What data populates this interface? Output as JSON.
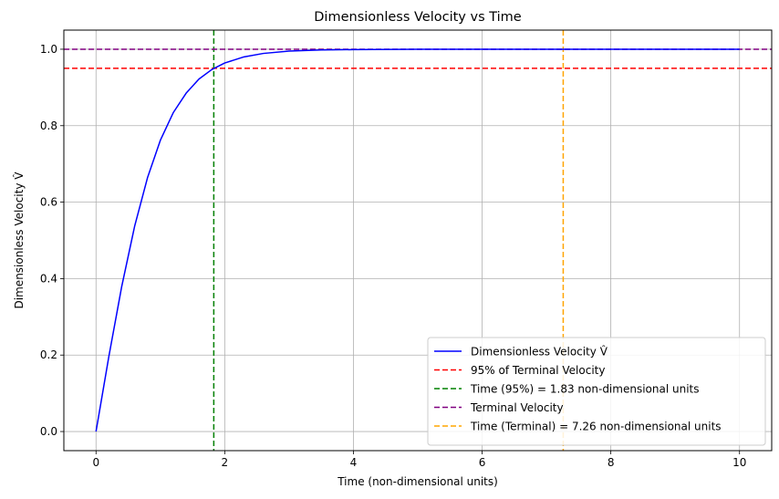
{
  "chart_data": {
    "type": "line",
    "title": "Dimensionless Velocity vs Time",
    "xlabel": "Time (non-dimensional units)",
    "ylabel": "Dimensionless Velocity V̂",
    "xlim": [
      -0.5,
      10.5
    ],
    "ylim": [
      -0.05,
      1.05
    ],
    "xticks": [
      0,
      2,
      4,
      6,
      8,
      10
    ],
    "yticks": [
      0.0,
      0.2,
      0.4,
      0.6,
      0.8,
      1.0
    ],
    "xtick_labels": [
      "0",
      "2",
      "4",
      "6",
      "8",
      "10"
    ],
    "ytick_labels": [
      "0.0",
      "0.2",
      "0.4",
      "0.6",
      "0.8",
      "1.0"
    ],
    "grid": true,
    "legend_position": "lower-right",
    "series": [
      {
        "name": "Dimensionless Velocity V̂",
        "style": "solid",
        "color": "#0000ff",
        "x": [
          0,
          0.2,
          0.4,
          0.6,
          0.8,
          1.0,
          1.2,
          1.4,
          1.6,
          1.8,
          2.0,
          2.3,
          2.6,
          3.0,
          3.5,
          4.0,
          5.0,
          6.0,
          7.0,
          8.0,
          9.0,
          10.0
        ],
        "y": [
          0.0,
          0.197,
          0.38,
          0.537,
          0.664,
          0.762,
          0.834,
          0.885,
          0.922,
          0.947,
          0.964,
          0.98,
          0.989,
          0.995,
          0.998,
          0.999,
          1.0,
          1.0,
          1.0,
          1.0,
          1.0,
          1.0
        ]
      }
    ],
    "reference_lines": [
      {
        "name": "95% of Terminal Velocity",
        "orientation": "horizontal",
        "value": 0.95,
        "color": "#ff0000"
      },
      {
        "name": "Time (95%) = 1.83 non-dimensional units",
        "orientation": "vertical",
        "value": 1.83,
        "color": "#008000"
      },
      {
        "name": "Terminal Velocity",
        "orientation": "horizontal",
        "value": 1.0,
        "color": "#800080"
      },
      {
        "name": "Time (Terminal) = 7.26 non-dimensional units",
        "orientation": "vertical",
        "value": 7.26,
        "color": "#ffa500"
      }
    ]
  }
}
